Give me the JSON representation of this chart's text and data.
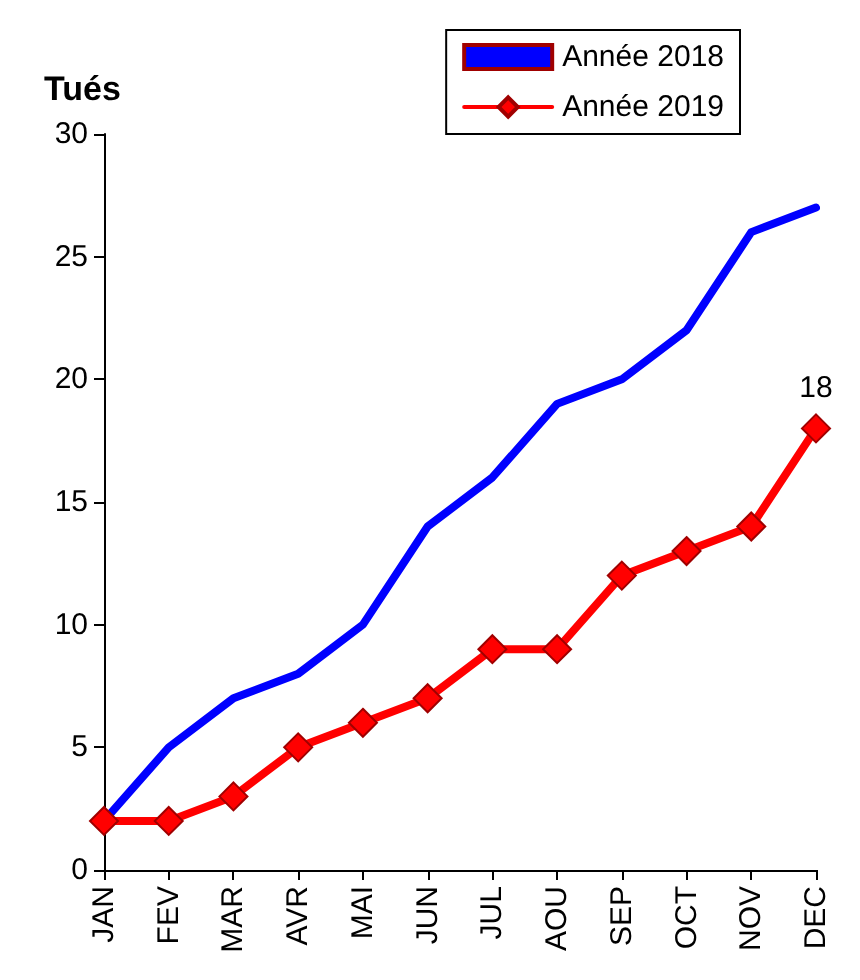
{
  "chart_data": {
    "type": "line",
    "ylabel": "Tués",
    "categories": [
      "JAN",
      "FEV",
      "MAR",
      "AVR",
      "MAI",
      "JUN",
      "JUL",
      "AOU",
      "SEP",
      "OCT",
      "NOV",
      "DEC"
    ],
    "series": [
      {
        "name": "Année 2018",
        "color": "#0000ff",
        "marker": "none",
        "values": [
          2,
          5,
          7,
          8,
          10,
          14,
          16,
          19,
          20,
          22,
          26,
          27
        ]
      },
      {
        "name": "Année 2019",
        "color": "#ff0000",
        "marker": "diamond",
        "values": [
          2,
          2,
          3,
          5,
          6,
          7,
          9,
          9,
          12,
          13,
          14,
          18
        ],
        "value_labels": [
          null,
          null,
          null,
          null,
          null,
          null,
          null,
          null,
          null,
          null,
          null,
          "18"
        ]
      }
    ],
    "ylim": [
      0,
      30
    ],
    "yticks": [
      0,
      5,
      10,
      15,
      20,
      25,
      30
    ],
    "grid": false,
    "legend": "top right",
    "line_style": "solid"
  }
}
